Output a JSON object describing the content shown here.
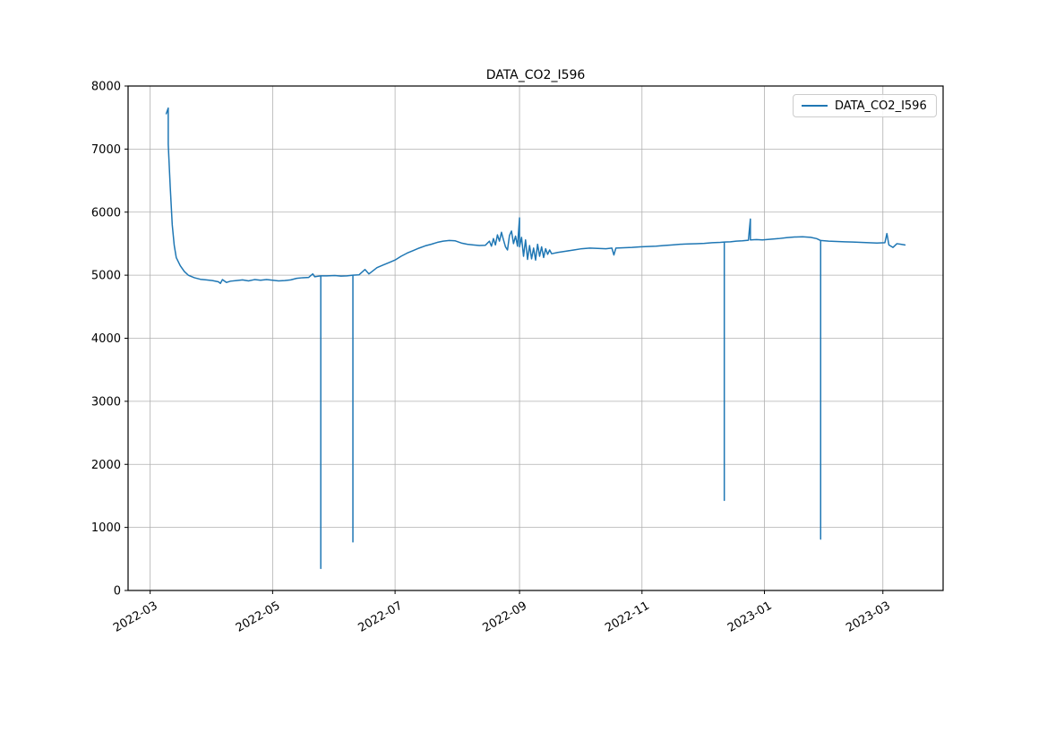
{
  "figure": {
    "background": "#ffffff"
  },
  "chart_data": {
    "type": "line",
    "title": "DATA_CO2_I596",
    "xlabel": "",
    "ylabel": "",
    "grid": true,
    "grid_color": "#b0b0b0",
    "spine_color": "#000000",
    "line_color": "#1f77b4",
    "line_width": 1.5,
    "legend": {
      "position": "upper right",
      "entries": [
        {
          "label": "DATA_CO2_I596",
          "color": "#1f77b4"
        }
      ]
    },
    "x_range": [
      "2022-02-18",
      "2023-03-31"
    ],
    "ylim": [
      0,
      8000
    ],
    "y_ticks": [
      0,
      1000,
      2000,
      3000,
      4000,
      5000,
      6000,
      7000,
      8000
    ],
    "x_ticks": [
      {
        "date": "2022-03-01",
        "label": "2022-03"
      },
      {
        "date": "2022-05-01",
        "label": "2022-05"
      },
      {
        "date": "2022-07-01",
        "label": "2022-07"
      },
      {
        "date": "2022-09-01",
        "label": "2022-09"
      },
      {
        "date": "2022-11-01",
        "label": "2022-11"
      },
      {
        "date": "2023-01-01",
        "label": "2023-01"
      },
      {
        "date": "2023-03-01",
        "label": "2023-03"
      }
    ],
    "x_tick_rotation": 30,
    "series": [
      {
        "name": "DATA_CO2_I596",
        "points": [
          [
            "2022-03-09",
            7560
          ],
          [
            "2022-03-10",
            7650
          ],
          [
            "2022-03-10",
            7080
          ],
          [
            "2022-03-11",
            6400
          ],
          [
            "2022-03-12",
            5800
          ],
          [
            "2022-03-13",
            5470
          ],
          [
            "2022-03-14",
            5280
          ],
          [
            "2022-03-16",
            5150
          ],
          [
            "2022-03-18",
            5060
          ],
          [
            "2022-03-20",
            5000
          ],
          [
            "2022-03-23",
            4960
          ],
          [
            "2022-03-26",
            4935
          ],
          [
            "2022-03-29",
            4925
          ],
          [
            "2022-04-01",
            4915
          ],
          [
            "2022-04-04",
            4895
          ],
          [
            "2022-04-05",
            4870
          ],
          [
            "2022-04-06",
            4930
          ],
          [
            "2022-04-08",
            4885
          ],
          [
            "2022-04-10",
            4905
          ],
          [
            "2022-04-13",
            4915
          ],
          [
            "2022-04-16",
            4925
          ],
          [
            "2022-04-19",
            4910
          ],
          [
            "2022-04-22",
            4930
          ],
          [
            "2022-04-25",
            4920
          ],
          [
            "2022-04-28",
            4930
          ],
          [
            "2022-05-01",
            4920
          ],
          [
            "2022-05-04",
            4910
          ],
          [
            "2022-05-07",
            4915
          ],
          [
            "2022-05-10",
            4925
          ],
          [
            "2022-05-13",
            4950
          ],
          [
            "2022-05-16",
            4960
          ],
          [
            "2022-05-19",
            4965
          ],
          [
            "2022-05-21",
            5020
          ],
          [
            "2022-05-22",
            4975
          ],
          [
            "2022-05-24",
            4985
          ],
          [
            "2022-05-25",
            4990
          ],
          [
            "2022-05-25",
            350
          ],
          [
            "2022-05-25",
            4990
          ],
          [
            "2022-05-28",
            4990
          ],
          [
            "2022-06-01",
            4995
          ],
          [
            "2022-06-04",
            4985
          ],
          [
            "2022-06-07",
            4990
          ],
          [
            "2022-06-10",
            5000
          ],
          [
            "2022-06-10",
            770
          ],
          [
            "2022-06-10",
            5000
          ],
          [
            "2022-06-13",
            5005
          ],
          [
            "2022-06-16",
            5090
          ],
          [
            "2022-06-18",
            5020
          ],
          [
            "2022-06-20",
            5070
          ],
          [
            "2022-06-22",
            5120
          ],
          [
            "2022-06-25",
            5160
          ],
          [
            "2022-06-28",
            5200
          ],
          [
            "2022-07-01",
            5240
          ],
          [
            "2022-07-04",
            5300
          ],
          [
            "2022-07-07",
            5350
          ],
          [
            "2022-07-10",
            5390
          ],
          [
            "2022-07-13",
            5430
          ],
          [
            "2022-07-16",
            5465
          ],
          [
            "2022-07-19",
            5490
          ],
          [
            "2022-07-22",
            5520
          ],
          [
            "2022-07-25",
            5540
          ],
          [
            "2022-07-28",
            5550
          ],
          [
            "2022-07-31",
            5545
          ],
          [
            "2022-08-03",
            5510
          ],
          [
            "2022-08-06",
            5490
          ],
          [
            "2022-08-09",
            5480
          ],
          [
            "2022-08-12",
            5470
          ],
          [
            "2022-08-15",
            5475
          ],
          [
            "2022-08-17",
            5540
          ],
          [
            "2022-08-18",
            5460
          ],
          [
            "2022-08-19",
            5580
          ],
          [
            "2022-08-20",
            5480
          ],
          [
            "2022-08-21",
            5640
          ],
          [
            "2022-08-22",
            5540
          ],
          [
            "2022-08-23",
            5680
          ],
          [
            "2022-08-24",
            5560
          ],
          [
            "2022-08-25",
            5450
          ],
          [
            "2022-08-26",
            5400
          ],
          [
            "2022-08-27",
            5630
          ],
          [
            "2022-08-28",
            5700
          ],
          [
            "2022-08-29",
            5500
          ],
          [
            "2022-08-30",
            5620
          ],
          [
            "2022-08-31",
            5460
          ],
          [
            "2022-09-01",
            5910
          ],
          [
            "2022-09-01",
            5450
          ],
          [
            "2022-09-02",
            5600
          ],
          [
            "2022-09-03",
            5300
          ],
          [
            "2022-09-04",
            5560
          ],
          [
            "2022-09-05",
            5250
          ],
          [
            "2022-09-06",
            5470
          ],
          [
            "2022-09-07",
            5260
          ],
          [
            "2022-09-08",
            5430
          ],
          [
            "2022-09-09",
            5240
          ],
          [
            "2022-09-10",
            5490
          ],
          [
            "2022-09-11",
            5300
          ],
          [
            "2022-09-12",
            5450
          ],
          [
            "2022-09-13",
            5280
          ],
          [
            "2022-09-14",
            5420
          ],
          [
            "2022-09-15",
            5330
          ],
          [
            "2022-09-16",
            5400
          ],
          [
            "2022-09-17",
            5340
          ],
          [
            "2022-09-20",
            5360
          ],
          [
            "2022-09-24",
            5380
          ],
          [
            "2022-09-28",
            5400
          ],
          [
            "2022-10-02",
            5420
          ],
          [
            "2022-10-06",
            5430
          ],
          [
            "2022-10-10",
            5425
          ],
          [
            "2022-10-14",
            5420
          ],
          [
            "2022-10-17",
            5430
          ],
          [
            "2022-10-18",
            5320
          ],
          [
            "2022-10-19",
            5430
          ],
          [
            "2022-10-23",
            5435
          ],
          [
            "2022-10-27",
            5440
          ],
          [
            "2022-10-31",
            5450
          ],
          [
            "2022-11-04",
            5455
          ],
          [
            "2022-11-08",
            5460
          ],
          [
            "2022-11-12",
            5470
          ],
          [
            "2022-11-16",
            5480
          ],
          [
            "2022-11-20",
            5490
          ],
          [
            "2022-11-24",
            5495
          ],
          [
            "2022-11-28",
            5500
          ],
          [
            "2022-12-02",
            5505
          ],
          [
            "2022-12-06",
            5515
          ],
          [
            "2022-12-10",
            5520
          ],
          [
            "2022-12-12",
            5525
          ],
          [
            "2022-12-12",
            1430
          ],
          [
            "2022-12-12",
            5525
          ],
          [
            "2022-12-15",
            5530
          ],
          [
            "2022-12-18",
            5540
          ],
          [
            "2022-12-21",
            5545
          ],
          [
            "2022-12-24",
            5555
          ],
          [
            "2022-12-25",
            5890
          ],
          [
            "2022-12-25",
            5560
          ],
          [
            "2022-12-28",
            5565
          ],
          [
            "2022-12-31",
            5560
          ],
          [
            "2023-01-04",
            5570
          ],
          [
            "2023-01-08",
            5580
          ],
          [
            "2023-01-12",
            5595
          ],
          [
            "2023-01-16",
            5605
          ],
          [
            "2023-01-20",
            5610
          ],
          [
            "2023-01-24",
            5600
          ],
          [
            "2023-01-27",
            5580
          ],
          [
            "2023-01-29",
            5550
          ],
          [
            "2023-01-29",
            815
          ],
          [
            "2023-01-29",
            5550
          ],
          [
            "2023-02-02",
            5540
          ],
          [
            "2023-02-06",
            5535
          ],
          [
            "2023-02-10",
            5530
          ],
          [
            "2023-02-14",
            5525
          ],
          [
            "2023-02-18",
            5520
          ],
          [
            "2023-02-22",
            5515
          ],
          [
            "2023-02-26",
            5510
          ],
          [
            "2023-03-02",
            5515
          ],
          [
            "2023-03-03",
            5660
          ],
          [
            "2023-03-04",
            5480
          ],
          [
            "2023-03-06",
            5440
          ],
          [
            "2023-03-08",
            5500
          ],
          [
            "2023-03-10",
            5490
          ],
          [
            "2023-03-12",
            5480
          ]
        ]
      }
    ]
  }
}
